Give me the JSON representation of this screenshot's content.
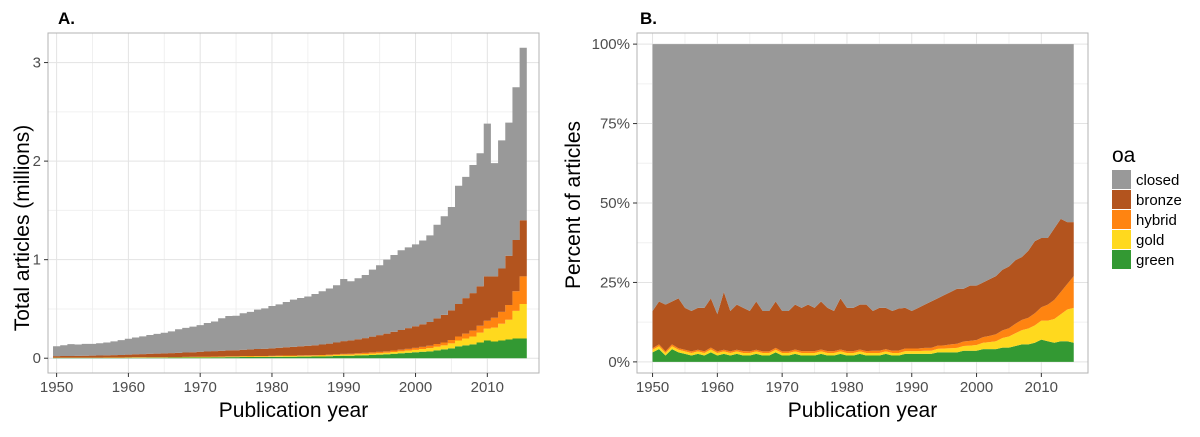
{
  "colors": {
    "closed": "#999999",
    "bronze": "#b3541e",
    "hybrid": "#ff8411",
    "gold": "#ffd91e",
    "green": "#339933"
  },
  "legend": {
    "title": "oa",
    "items": [
      {
        "key": "closed",
        "label": "closed"
      },
      {
        "key": "bronze",
        "label": "bronze"
      },
      {
        "key": "hybrid",
        "label": "hybrid"
      },
      {
        "key": "gold",
        "label": "gold"
      },
      {
        "key": "green",
        "label": "green"
      }
    ]
  },
  "chart_data": [
    {
      "panel": "A.",
      "type": "area",
      "stacking": "stacked-step",
      "xlabel": "Publication year",
      "ylabel": "Total articles (millions)",
      "xlim": [
        1948.8,
        2017.2
      ],
      "ylim": [
        -0.15,
        3.3
      ],
      "xticks": [
        1950,
        1960,
        1970,
        1980,
        1990,
        2000,
        2010
      ],
      "yticks": [
        0,
        1,
        2,
        3
      ],
      "ytick_labels": [
        "0",
        "1",
        "2",
        "3"
      ],
      "x": [
        1950,
        1951,
        1952,
        1953,
        1954,
        1955,
        1956,
        1957,
        1958,
        1959,
        1960,
        1961,
        1962,
        1963,
        1964,
        1965,
        1966,
        1967,
        1968,
        1969,
        1970,
        1971,
        1972,
        1973,
        1974,
        1975,
        1976,
        1977,
        1978,
        1979,
        1980,
        1981,
        1982,
        1983,
        1984,
        1985,
        1986,
        1987,
        1988,
        1989,
        1990,
        1991,
        1992,
        1993,
        1994,
        1995,
        1996,
        1997,
        1998,
        1999,
        2000,
        2001,
        2002,
        2003,
        2004,
        2005,
        2006,
        2007,
        2008,
        2009,
        2010,
        2011,
        2012,
        2013,
        2014,
        2015
      ],
      "series": [
        {
          "name": "green",
          "values": [
            0.003,
            0.003,
            0.003,
            0.003,
            0.003,
            0.003,
            0.003,
            0.004,
            0.004,
            0.004,
            0.005,
            0.005,
            0.005,
            0.006,
            0.006,
            0.006,
            0.007,
            0.007,
            0.008,
            0.008,
            0.009,
            0.009,
            0.01,
            0.01,
            0.011,
            0.011,
            0.012,
            0.012,
            0.013,
            0.013,
            0.014,
            0.014,
            0.015,
            0.015,
            0.016,
            0.016,
            0.017,
            0.018,
            0.02,
            0.022,
            0.025,
            0.025,
            0.028,
            0.03,
            0.033,
            0.036,
            0.04,
            0.045,
            0.05,
            0.055,
            0.06,
            0.065,
            0.07,
            0.08,
            0.09,
            0.1,
            0.12,
            0.13,
            0.14,
            0.16,
            0.18,
            0.17,
            0.18,
            0.19,
            0.2,
            0.2
          ]
        },
        {
          "name": "gold",
          "values": [
            0.002,
            0.002,
            0.002,
            0.002,
            0.002,
            0.002,
            0.002,
            0.002,
            0.002,
            0.002,
            0.002,
            0.003,
            0.003,
            0.003,
            0.003,
            0.003,
            0.003,
            0.003,
            0.004,
            0.004,
            0.004,
            0.004,
            0.004,
            0.005,
            0.005,
            0.005,
            0.005,
            0.006,
            0.006,
            0.006,
            0.006,
            0.007,
            0.007,
            0.007,
            0.008,
            0.008,
            0.008,
            0.009,
            0.009,
            0.01,
            0.011,
            0.011,
            0.012,
            0.013,
            0.014,
            0.015,
            0.016,
            0.018,
            0.02,
            0.022,
            0.025,
            0.028,
            0.032,
            0.036,
            0.04,
            0.05,
            0.06,
            0.07,
            0.08,
            0.1,
            0.12,
            0.14,
            0.17,
            0.2,
            0.28,
            0.35
          ]
        },
        {
          "name": "hybrid",
          "values": [
            0.001,
            0.001,
            0.001,
            0.001,
            0.001,
            0.001,
            0.001,
            0.001,
            0.001,
            0.001,
            0.002,
            0.002,
            0.002,
            0.002,
            0.002,
            0.002,
            0.002,
            0.002,
            0.002,
            0.003,
            0.003,
            0.003,
            0.003,
            0.003,
            0.003,
            0.003,
            0.004,
            0.004,
            0.004,
            0.004,
            0.004,
            0.005,
            0.005,
            0.005,
            0.005,
            0.006,
            0.006,
            0.006,
            0.007,
            0.008,
            0.008,
            0.009,
            0.01,
            0.011,
            0.012,
            0.013,
            0.014,
            0.015,
            0.016,
            0.018,
            0.02,
            0.022,
            0.025,
            0.028,
            0.03,
            0.035,
            0.04,
            0.05,
            0.06,
            0.07,
            0.08,
            0.1,
            0.12,
            0.15,
            0.2,
            0.28
          ]
        },
        {
          "name": "bronze",
          "values": [
            0.015,
            0.016,
            0.017,
            0.018,
            0.019,
            0.02,
            0.021,
            0.022,
            0.024,
            0.026,
            0.028,
            0.03,
            0.032,
            0.034,
            0.036,
            0.038,
            0.04,
            0.042,
            0.044,
            0.046,
            0.05,
            0.052,
            0.055,
            0.058,
            0.06,
            0.062,
            0.065,
            0.068,
            0.07,
            0.073,
            0.076,
            0.08,
            0.084,
            0.088,
            0.092,
            0.096,
            0.1,
            0.106,
            0.112,
            0.12,
            0.13,
            0.136,
            0.142,
            0.15,
            0.16,
            0.17,
            0.18,
            0.19,
            0.2,
            0.21,
            0.22,
            0.23,
            0.24,
            0.26,
            0.28,
            0.3,
            0.33,
            0.36,
            0.38,
            0.4,
            0.45,
            0.42,
            0.44,
            0.5,
            0.52,
            0.57
          ]
        },
        {
          "name": "closed",
          "values": [
            0.1,
            0.11,
            0.12,
            0.115,
            0.12,
            0.12,
            0.125,
            0.13,
            0.14,
            0.15,
            0.16,
            0.17,
            0.18,
            0.19,
            0.2,
            0.21,
            0.22,
            0.24,
            0.25,
            0.26,
            0.27,
            0.29,
            0.3,
            0.33,
            0.35,
            0.35,
            0.37,
            0.38,
            0.4,
            0.41,
            0.43,
            0.44,
            0.46,
            0.48,
            0.49,
            0.5,
            0.52,
            0.54,
            0.56,
            0.58,
            0.63,
            0.6,
            0.62,
            0.64,
            0.68,
            0.71,
            0.75,
            0.78,
            0.81,
            0.82,
            0.83,
            0.85,
            0.88,
            0.95,
            1.0,
            1.05,
            1.2,
            1.23,
            1.3,
            1.35,
            1.55,
            1.15,
            1.3,
            1.35,
            1.55,
            1.75
          ]
        }
      ]
    },
    {
      "panel": "B.",
      "type": "area",
      "stacking": "stacked-percent",
      "xlabel": "Publication year",
      "ylabel": "Percent of articles",
      "xlim": [
        1947.6,
        2017.2
      ],
      "ylim": [
        -0.035,
        1.035
      ],
      "xticks": [
        1950,
        1960,
        1970,
        1980,
        1990,
        2000,
        2010
      ],
      "yticks": [
        0,
        0.25,
        0.5,
        0.75,
        1.0
      ],
      "ytick_labels": [
        "0%",
        "25%",
        "50%",
        "75%",
        "100%"
      ],
      "x": [
        1950,
        1951,
        1952,
        1953,
        1954,
        1955,
        1956,
        1957,
        1958,
        1959,
        1960,
        1961,
        1962,
        1963,
        1964,
        1965,
        1966,
        1967,
        1968,
        1969,
        1970,
        1971,
        1972,
        1973,
        1974,
        1975,
        1976,
        1977,
        1978,
        1979,
        1980,
        1981,
        1982,
        1983,
        1984,
        1985,
        1986,
        1987,
        1988,
        1989,
        1990,
        1991,
        1992,
        1993,
        1994,
        1995,
        1996,
        1997,
        1998,
        1999,
        2000,
        2001,
        2002,
        2003,
        2004,
        2005,
        2006,
        2007,
        2008,
        2009,
        2010,
        2011,
        2012,
        2013,
        2014,
        2015
      ],
      "series": [
        {
          "name": "green",
          "values": [
            0.03,
            0.04,
            0.02,
            0.04,
            0.03,
            0.025,
            0.02,
            0.025,
            0.02,
            0.03,
            0.02,
            0.025,
            0.02,
            0.025,
            0.02,
            0.02,
            0.025,
            0.02,
            0.02,
            0.03,
            0.02,
            0.02,
            0.025,
            0.02,
            0.02,
            0.02,
            0.025,
            0.02,
            0.02,
            0.025,
            0.02,
            0.02,
            0.025,
            0.02,
            0.02,
            0.02,
            0.025,
            0.02,
            0.02,
            0.025,
            0.025,
            0.025,
            0.025,
            0.025,
            0.03,
            0.03,
            0.03,
            0.03,
            0.035,
            0.035,
            0.035,
            0.04,
            0.04,
            0.04,
            0.045,
            0.045,
            0.05,
            0.055,
            0.055,
            0.06,
            0.07,
            0.065,
            0.06,
            0.065,
            0.065,
            0.06
          ]
        },
        {
          "name": "gold",
          "values": [
            0.008,
            0.009,
            0.008,
            0.009,
            0.008,
            0.008,
            0.008,
            0.008,
            0.008,
            0.009,
            0.008,
            0.008,
            0.008,
            0.008,
            0.008,
            0.008,
            0.008,
            0.008,
            0.008,
            0.008,
            0.008,
            0.008,
            0.008,
            0.008,
            0.008,
            0.008,
            0.008,
            0.008,
            0.008,
            0.008,
            0.008,
            0.008,
            0.008,
            0.008,
            0.008,
            0.008,
            0.008,
            0.008,
            0.008,
            0.009,
            0.009,
            0.009,
            0.01,
            0.01,
            0.011,
            0.012,
            0.013,
            0.014,
            0.015,
            0.016,
            0.018,
            0.02,
            0.022,
            0.025,
            0.03,
            0.035,
            0.04,
            0.045,
            0.05,
            0.055,
            0.06,
            0.065,
            0.075,
            0.085,
            0.1,
            0.11
          ]
        },
        {
          "name": "hybrid",
          "values": [
            0.005,
            0.006,
            0.005,
            0.006,
            0.005,
            0.005,
            0.005,
            0.005,
            0.005,
            0.006,
            0.005,
            0.005,
            0.005,
            0.005,
            0.006,
            0.005,
            0.005,
            0.005,
            0.005,
            0.006,
            0.005,
            0.005,
            0.006,
            0.006,
            0.006,
            0.006,
            0.006,
            0.006,
            0.006,
            0.006,
            0.006,
            0.006,
            0.006,
            0.006,
            0.007,
            0.007,
            0.007,
            0.007,
            0.008,
            0.008,
            0.008,
            0.008,
            0.009,
            0.009,
            0.01,
            0.01,
            0.012,
            0.013,
            0.014,
            0.015,
            0.016,
            0.018,
            0.02,
            0.022,
            0.024,
            0.026,
            0.03,
            0.032,
            0.034,
            0.038,
            0.042,
            0.05,
            0.06,
            0.07,
            0.08,
            0.1
          ]
        },
        {
          "name": "bronze",
          "values": [
            0.117,
            0.135,
            0.147,
            0.135,
            0.157,
            0.132,
            0.127,
            0.132,
            0.137,
            0.155,
            0.117,
            0.182,
            0.127,
            0.142,
            0.136,
            0.127,
            0.152,
            0.127,
            0.127,
            0.146,
            0.127,
            0.127,
            0.141,
            0.136,
            0.146,
            0.136,
            0.151,
            0.136,
            0.126,
            0.161,
            0.136,
            0.136,
            0.141,
            0.146,
            0.125,
            0.135,
            0.13,
            0.125,
            0.132,
            0.128,
            0.118,
            0.128,
            0.136,
            0.146,
            0.149,
            0.158,
            0.165,
            0.173,
            0.166,
            0.174,
            0.171,
            0.172,
            0.178,
            0.183,
            0.191,
            0.194,
            0.2,
            0.198,
            0.211,
            0.227,
            0.218,
            0.21,
            0.225,
            0.23,
            0.195,
            0.17
          ]
        }
      ]
    }
  ]
}
